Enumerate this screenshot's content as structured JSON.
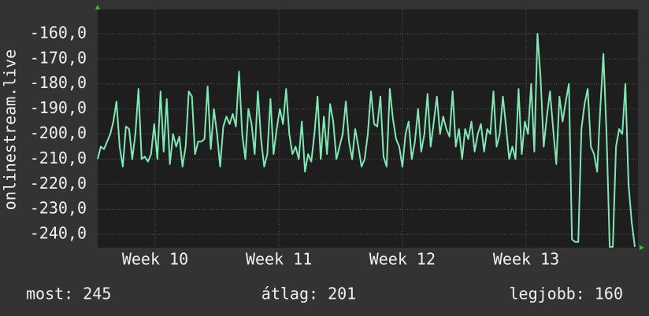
{
  "chart_data": {
    "type": "line",
    "ylabel": "onlinestream.live",
    "ylim": [
      -245.3,
      -150.3
    ],
    "yticks": [
      {
        "value": -240,
        "label": "-240,0"
      },
      {
        "value": -230,
        "label": "-230,0"
      },
      {
        "value": -220,
        "label": "-220,0"
      },
      {
        "value": -210,
        "label": "-210,0"
      },
      {
        "value": -200,
        "label": "-200,0"
      },
      {
        "value": -190,
        "label": "-190,0"
      },
      {
        "value": -180,
        "label": "-180,0"
      },
      {
        "value": -170,
        "label": "-170,0"
      },
      {
        "value": -160,
        "label": "-160,0"
      }
    ],
    "xlim": [
      0,
      172
    ],
    "xticks": [
      {
        "value": 18.3,
        "label": "Week 10"
      },
      {
        "value": 57.7,
        "label": "Week 11"
      },
      {
        "value": 97,
        "label": "Week 12"
      },
      {
        "value": 136.4,
        "label": "Week 13"
      }
    ],
    "grid": true,
    "series": [
      {
        "color": "#80e8b4",
        "values": [
          -210,
          -205,
          -206,
          -203,
          -200,
          -195,
          -187,
          -205,
          -213,
          -197,
          -198,
          -210,
          -200,
          -182,
          -210,
          -209,
          -211,
          -208,
          -196,
          -210,
          -183,
          -207,
          -186,
          -212,
          -200,
          -205,
          -201,
          -213,
          -205,
          -183,
          -185,
          -208,
          -203,
          -203,
          -202,
          -181,
          -206,
          -190,
          -200,
          -213,
          -197,
          -193,
          -196,
          -192,
          -197,
          -175,
          -200,
          -210,
          -190,
          -196,
          -208,
          -183,
          -202,
          -213,
          -208,
          -186,
          -208,
          -198,
          -190,
          -196,
          -182,
          -200,
          -208,
          -205,
          -210,
          -195,
          -215,
          -208,
          -211,
          -200,
          -185,
          -210,
          -193,
          -208,
          -188,
          -195,
          -210,
          -205,
          -200,
          -187,
          -203,
          -210,
          -198,
          -205,
          -213,
          -210,
          -200,
          -183,
          -196,
          -197,
          -185,
          -209,
          -213,
          -182,
          -194,
          -202,
          -205,
          -213,
          -200,
          -195,
          -210,
          -203,
          -190,
          -207,
          -200,
          -184,
          -205,
          -195,
          -185,
          -200,
          -193,
          -198,
          -201,
          -183,
          -205,
          -198,
          -210,
          -198,
          -202,
          -195,
          -207,
          -200,
          -196,
          -207,
          -198,
          -200,
          -183,
          -205,
          -200,
          -185,
          -197,
          -210,
          -205,
          -210,
          -182,
          -208,
          -195,
          -200,
          -180,
          -207,
          -160,
          -178,
          -205,
          -193,
          -183,
          -198,
          -212,
          -185,
          -195,
          -187,
          -180,
          -242,
          -243,
          -243,
          -198,
          -188,
          -182,
          -205,
          -208,
          -215,
          -190,
          -168,
          -200,
          -245,
          -245,
          -205,
          -198,
          -200,
          -180,
          -220,
          -235,
          -245
        ]
      }
    ],
    "footer": [
      "most: 245",
      "átlag: 201",
      "legjobb: 160"
    ]
  }
}
